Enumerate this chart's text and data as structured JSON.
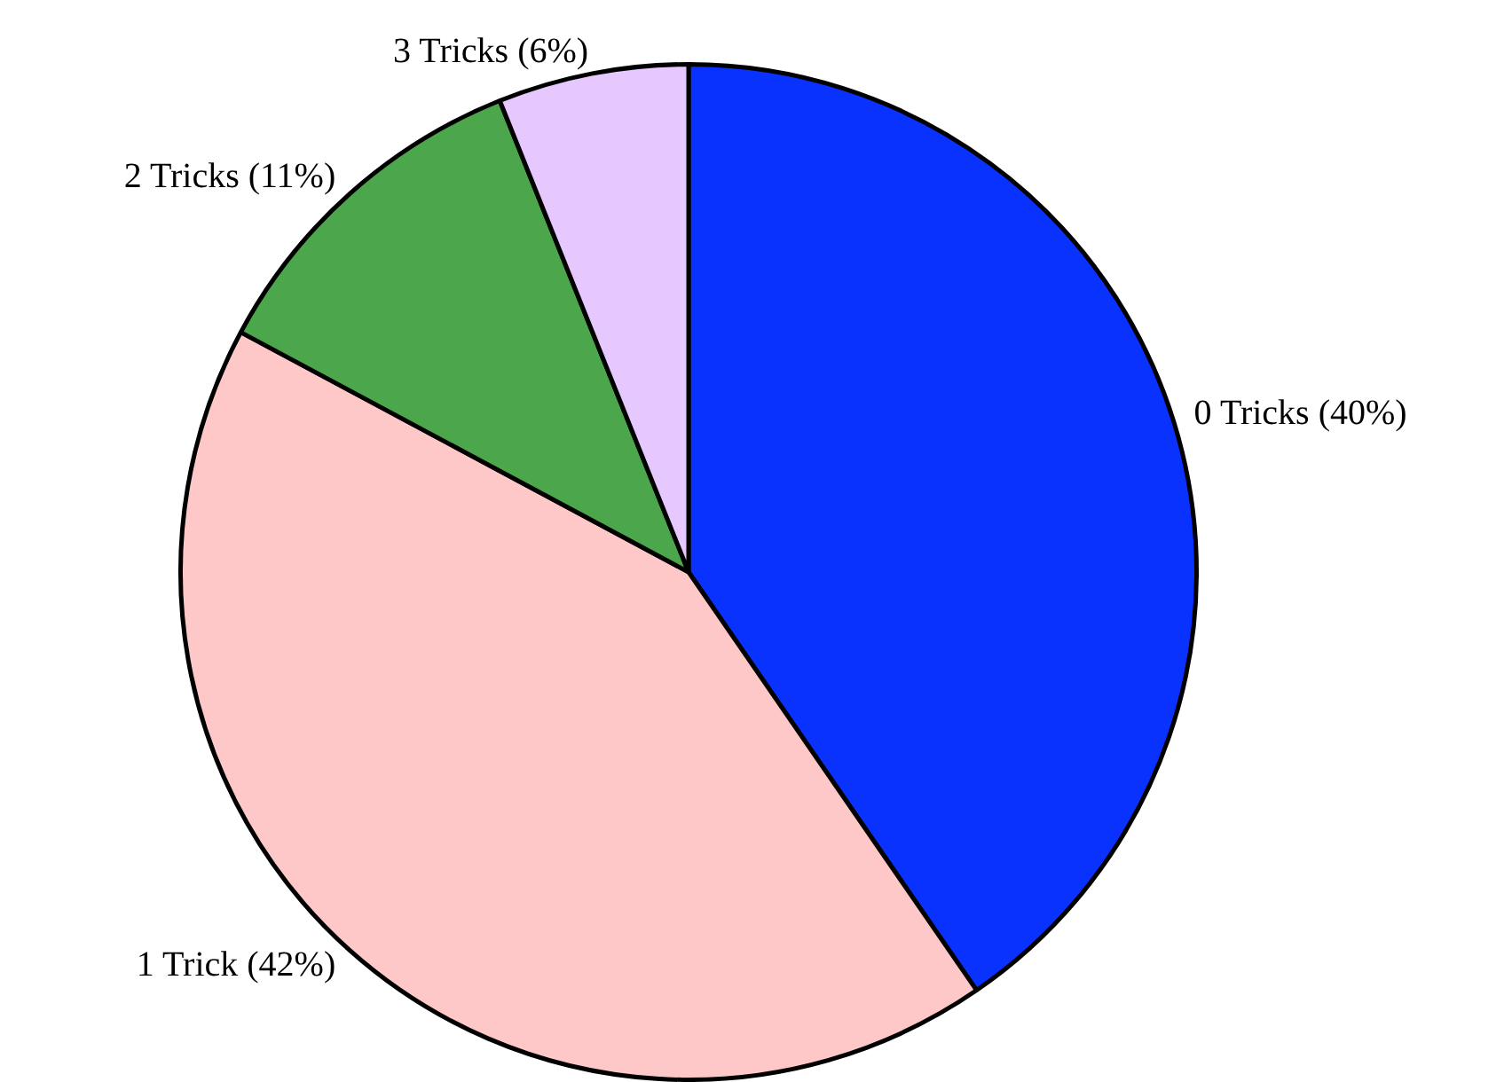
{
  "chart_data": {
    "type": "pie",
    "categories": [
      "0 Tricks (40%)",
      "1 Trick (42%)",
      "2 Tricks (11%)",
      "3 Tricks (6%)"
    ],
    "values": [
      40,
      42,
      11,
      6
    ],
    "colors": [
      "#0a32ff",
      "#ffc8c8",
      "#4ca64c",
      "#e6c8ff"
    ],
    "legend": false
  }
}
